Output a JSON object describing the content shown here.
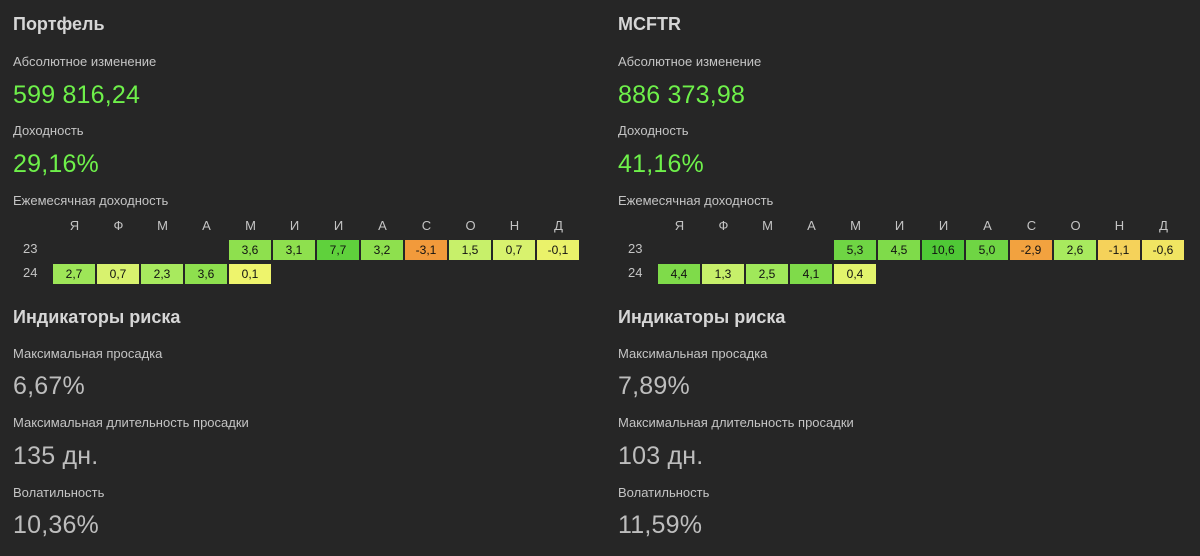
{
  "month_headers": [
    "Я",
    "Ф",
    "М",
    "А",
    "М",
    "И",
    "И",
    "А",
    "С",
    "О",
    "Н",
    "Д"
  ],
  "panels": {
    "left": {
      "title": "Портфель",
      "abs_change_label": "Абсолютное изменение",
      "abs_change_value": "599 816,24",
      "yield_label": "Доходность",
      "yield_value": "29,16%",
      "monthly_label": "Ежемесячная доходность",
      "years": [
        {
          "year": "23",
          "start_month": 4,
          "values": [
            "3,6",
            "3,1",
            "7,7",
            "3,2",
            "-3,1",
            "1,5",
            "0,7",
            "-0,1"
          ],
          "colors": [
            "#8ee04e",
            "#8ee04e",
            "#5fd13c",
            "#8ee04e",
            "#f29a3b",
            "#c7f06a",
            "#d8f26e",
            "#eaf26a"
          ]
        },
        {
          "year": "24",
          "start_month": 0,
          "values": [
            "2,7",
            "0,7",
            "2,3",
            "3,6",
            "0,1"
          ],
          "colors": [
            "#9ee658",
            "#d8f26e",
            "#a8ea5e",
            "#8ee04e",
            "#eef46c"
          ]
        }
      ],
      "risk_title": "Индикаторы риска",
      "max_drawdown_label": "Максимальная просадка",
      "max_drawdown_value": "6,67%",
      "max_dd_duration_label": "Максимальная длительность просадки",
      "max_dd_duration_value": "135 дн.",
      "volatility_label": "Волатильность",
      "volatility_value": "10,36%"
    },
    "right": {
      "title": "MCFTR",
      "abs_change_label": "Абсолютное изменение",
      "abs_change_value": "886 373,98",
      "yield_label": "Доходность",
      "yield_value": "41,16%",
      "monthly_label": "Ежемесячная доходность",
      "years": [
        {
          "year": "23",
          "start_month": 4,
          "values": [
            "5,3",
            "4,5",
            "10,6",
            "5,0",
            "-2,9",
            "2,6",
            "-1,1",
            "-0,6"
          ],
          "colors": [
            "#6fd544",
            "#7fdb4a",
            "#4fc836",
            "#6fd544",
            "#f2a23f",
            "#a8ea5e",
            "#f5d25a",
            "#f0e562"
          ]
        },
        {
          "year": "24",
          "start_month": 0,
          "values": [
            "4,4",
            "1,3",
            "2,5",
            "4,1",
            "0,4"
          ],
          "colors": [
            "#7fdb4a",
            "#c7f06a",
            "#a0e85a",
            "#7fdb4a",
            "#e2f46c"
          ]
        }
      ],
      "risk_title": "Индикаторы риска",
      "max_drawdown_label": "Максимальная просадка",
      "max_drawdown_value": "7,89%",
      "max_dd_duration_label": "Максимальная длительность просадки",
      "max_dd_duration_value": "103 дн.",
      "volatility_label": "Волатильность",
      "volatility_value": "11,59%"
    }
  }
}
